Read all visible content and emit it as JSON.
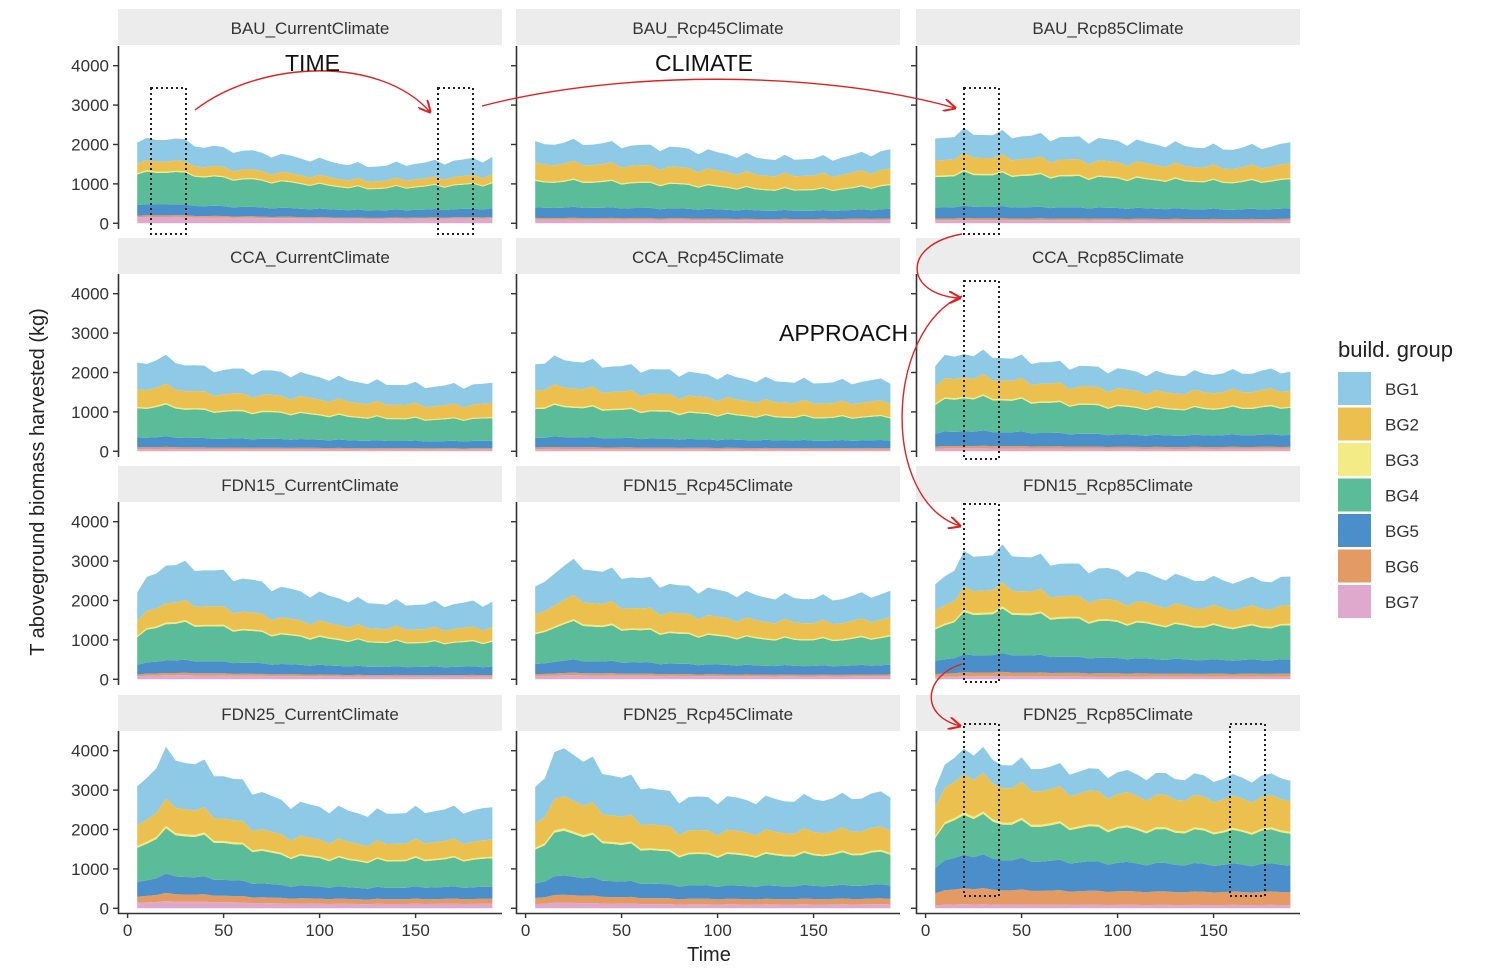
{
  "colors": {
    "BG1": "#8ecae6",
    "BG2": "#ecc04f",
    "BG3": "#f3ec84",
    "BG4": "#5bbc99",
    "BG5": "#4a8fc9",
    "BG6": "#e49a63",
    "BG7": "#dfa9cd",
    "strip": "#ececec",
    "axis": "#333333",
    "annotation": "#dd2222",
    "box": "#222222"
  },
  "chart_data": {
    "type": "area",
    "stacked": true,
    "facet_rows": [
      "BAU",
      "CCA",
      "FDN15",
      "FDN25"
    ],
    "facet_cols": [
      "CurrentClimate",
      "Rcp45Climate",
      "Rcp85Climate"
    ],
    "panel_titles": [
      [
        "BAU_CurrentClimate",
        "BAU_Rcp45Climate",
        "BAU_Rcp85Climate"
      ],
      [
        "CCA_CurrentClimate",
        "CCA_Rcp45Climate",
        "CCA_Rcp85Climate"
      ],
      [
        "FDN15_CurrentClimate",
        "FDN15_Rcp45Climate",
        "FDN15_Rcp85Climate"
      ],
      [
        "FDN25_CurrentClimate",
        "FDN25_Rcp45Climate",
        "FDN25_Rcp85Climate"
      ]
    ],
    "xlabel": "Time",
    "ylabel": "T aboveground biomass harvested (kg)",
    "xlim": [
      -5,
      195
    ],
    "ylim": [
      -120,
      4500
    ],
    "x_ticks": [
      0,
      50,
      100,
      150
    ],
    "x_tick_labels": [
      "0",
      "50",
      "100",
      "150"
    ],
    "y_ticks": [
      0,
      1000,
      2000,
      3000,
      4000
    ],
    "y_tick_labels": [
      "0",
      "1000",
      "2000",
      "3000",
      "4000"
    ],
    "grid": false,
    "legend": {
      "title": "build. group",
      "position": "right",
      "entries": [
        "BG1",
        "BG2",
        "BG3",
        "BG4",
        "BG5",
        "BG6",
        "BG7"
      ]
    },
    "x": [
      5,
      10,
      15,
      20,
      25,
      30,
      35,
      40,
      45,
      50,
      55,
      60,
      65,
      70,
      75,
      80,
      85,
      90,
      95,
      100,
      105,
      110,
      115,
      120,
      125,
      130,
      135,
      140,
      145,
      150,
      155,
      160,
      165,
      170,
      175,
      180,
      185,
      190
    ],
    "approx_totals": {
      "BAU_CurrentClimate": [
        2050,
        2100,
        2150,
        2100,
        2200,
        2150,
        2100,
        2000,
        2050,
        1950,
        2000,
        1900,
        1950,
        1900,
        1800,
        1750,
        1750,
        1700,
        1700,
        1700,
        1650,
        1700,
        1600,
        1500,
        1450,
        1450,
        1500,
        1500,
        1500,
        1550,
        1500,
        1550,
        1550,
        1550,
        1600,
        1600,
        1650,
        1650
      ],
      "BAU_Rcp85Climate": [
        2200,
        2250,
        2200,
        2300,
        2250,
        2350,
        2400,
        2300,
        2250,
        2300,
        2250,
        2300,
        2200,
        2250,
        2300,
        2200,
        2250,
        2150,
        2200,
        2150,
        2100,
        2150,
        2100,
        2100,
        2050,
        2000,
        1950,
        1950,
        1900,
        1950,
        1900,
        1900,
        1950,
        1950,
        2000,
        1950,
        1950,
        2000
      ],
      "CCA_CurrentClimate": [
        2250,
        2250,
        2300,
        2250,
        2300,
        2350,
        2400,
        2300,
        2250,
        2200,
        2250,
        2100,
        2200,
        2100,
        2100,
        2000,
        2050,
        2000,
        2050,
        2000,
        2000,
        1950,
        2000,
        1900,
        1900,
        1750,
        1700,
        1700,
        1650,
        1700,
        1650,
        1650,
        1700,
        1650,
        1700,
        1700,
        1700,
        1700
      ],
      "FDN25_Rcp85Climate": [
        3200,
        3100,
        3900,
        4100,
        3800,
        4200,
        4100,
        3700,
        3900,
        3700,
        3800,
        3600,
        3700,
        3650,
        3600,
        3550,
        3600,
        3500,
        3550,
        3500,
        3450,
        3500,
        3400,
        3400,
        3450,
        3300,
        3250,
        3350,
        3400,
        3350,
        3300,
        3350,
        3350,
        3300,
        3350,
        3300,
        3300,
        3350
      ]
    }
  },
  "annotations": {
    "time": "TIME",
    "climate": "CLIMATE",
    "approach": "APPROACH"
  }
}
